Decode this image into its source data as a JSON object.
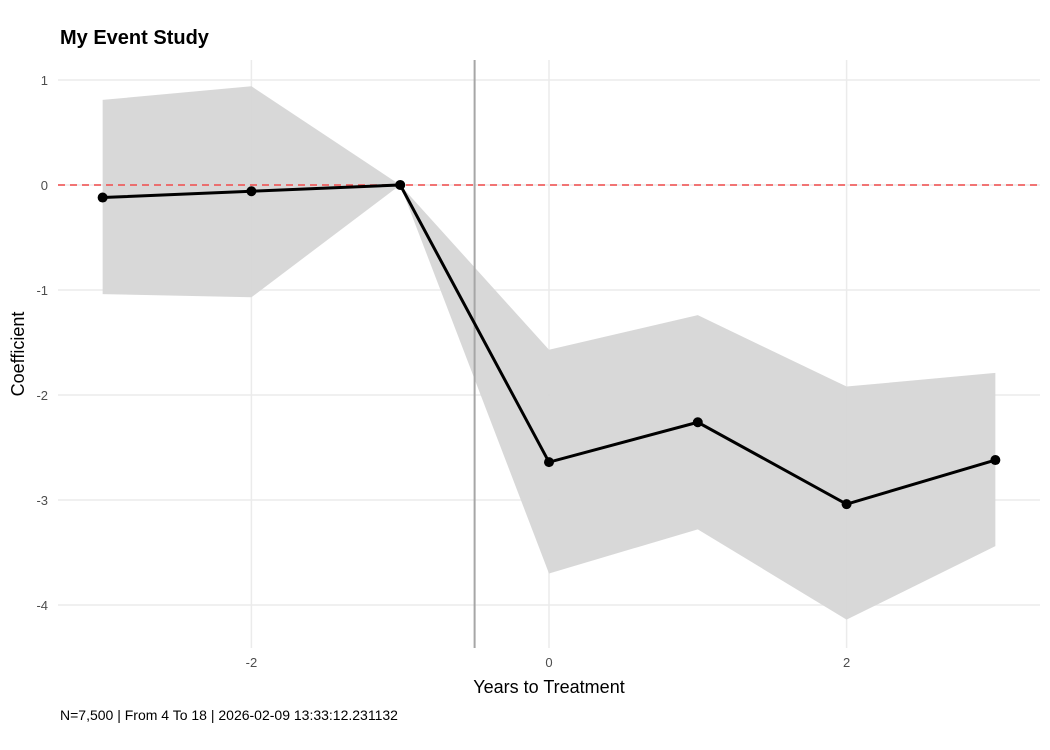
{
  "chart_data": {
    "type": "line",
    "title": "My Event Study",
    "xlabel": "Years to Treatment",
    "ylabel": "Coefficient",
    "caption": "N=7,500 | From 4 To 18 | 2026-02-09 13:33:12.231132",
    "x": [
      -3,
      -2,
      -1,
      0,
      1,
      2,
      3
    ],
    "estimate": [
      -0.12,
      -0.06,
      0,
      -2.64,
      -2.26,
      -3.04,
      -2.62
    ],
    "ci_upper": [
      0.81,
      0.94,
      0,
      -1.57,
      -1.24,
      -1.92,
      -1.79
    ],
    "ci_lower": [
      -1.04,
      -1.07,
      0,
      -3.7,
      -3.28,
      -4.14,
      -3.44
    ],
    "xlim": [
      -3.3,
      3.3
    ],
    "ylim": [
      -4.41,
      1.19
    ],
    "x_ticks": [
      -2,
      0,
      2
    ],
    "y_ticks": [
      1,
      0,
      -1,
      -2,
      -3,
      -4
    ],
    "x_tick_labels": [
      "-2",
      "0",
      "2"
    ],
    "y_tick_labels": [
      "1",
      "0",
      "-1",
      "-2",
      "-3",
      "-4"
    ],
    "reference_hline": 0,
    "reference_vline": -0.5,
    "grid": true,
    "colors": {
      "line": "#000000",
      "ribbon": "#d6d6d6",
      "hline": "#f04a4a",
      "vline": "#a6a6a6",
      "grid": "#ebebeb"
    }
  }
}
